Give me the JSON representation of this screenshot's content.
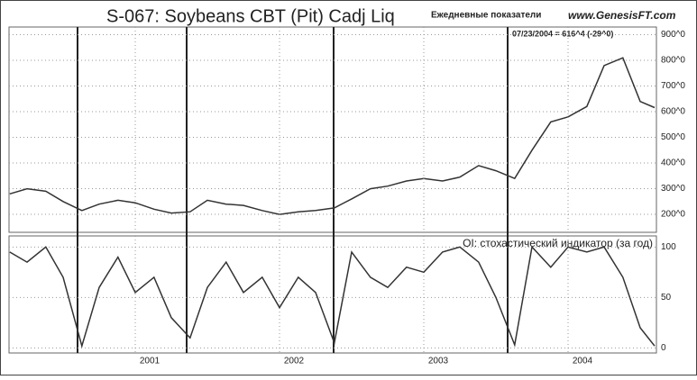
{
  "chart_data": [
    {
      "type": "line",
      "title": "S-067:  Soybeans CBT (Pit) Cadj Liq",
      "subtitle": "Ежедневные показатели",
      "source": "www.GenesisFT.com",
      "annotation": "07/23/2004 = 616^4 (-29^0)",
      "x": [
        2000.13,
        2000.25,
        2000.38,
        2000.5,
        2000.63,
        2000.75,
        2000.88,
        2001.0,
        2001.13,
        2001.25,
        2001.38,
        2001.5,
        2001.63,
        2001.75,
        2001.88,
        2002.0,
        2002.13,
        2002.25,
        2002.38,
        2002.5,
        2002.63,
        2002.75,
        2002.88,
        2003.0,
        2003.13,
        2003.25,
        2003.38,
        2003.5,
        2003.63,
        2003.75,
        2003.88,
        2004.0,
        2004.13,
        2004.25,
        2004.38,
        2004.5,
        2004.6
      ],
      "values": [
        280,
        300,
        290,
        250,
        215,
        240,
        255,
        245,
        220,
        205,
        210,
        255,
        240,
        235,
        215,
        200,
        210,
        215,
        225,
        260,
        300,
        310,
        330,
        340,
        330,
        345,
        390,
        370,
        340,
        450,
        560,
        580,
        620,
        780,
        810,
        640,
        616
      ],
      "color": "#333333",
      "xlim": [
        2000.125,
        2004.6125
      ],
      "ylim": [
        130,
        930
      ],
      "yticks": [
        {
          "value": 200,
          "label": "200^0"
        },
        {
          "value": 300,
          "label": "300^0"
        },
        {
          "value": 400,
          "label": "400^0"
        },
        {
          "value": 500,
          "label": "500^0"
        },
        {
          "value": 600,
          "label": "600^0"
        },
        {
          "value": 700,
          "label": "700^0"
        },
        {
          "value": 800,
          "label": "800^0"
        },
        {
          "value": 900,
          "label": "900^0"
        }
      ],
      "grid": true
    },
    {
      "type": "line",
      "title": "OI: стохастический индикатор (за год)",
      "x": [
        2000.13,
        2000.25,
        2000.38,
        2000.5,
        2000.63,
        2000.75,
        2000.88,
        2001.0,
        2001.13,
        2001.25,
        2001.38,
        2001.5,
        2001.63,
        2001.75,
        2001.88,
        2002.0,
        2002.13,
        2002.25,
        2002.38,
        2002.5,
        2002.63,
        2002.75,
        2002.88,
        2003.0,
        2003.13,
        2003.25,
        2003.38,
        2003.5,
        2003.63,
        2003.75,
        2003.88,
        2004.0,
        2004.13,
        2004.25,
        2004.38,
        2004.5,
        2004.6
      ],
      "values": [
        95,
        85,
        100,
        70,
        2,
        60,
        90,
        55,
        70,
        30,
        10,
        60,
        85,
        55,
        70,
        40,
        70,
        55,
        5,
        95,
        70,
        60,
        80,
        75,
        95,
        100,
        85,
        50,
        3,
        100,
        80,
        100,
        95,
        100,
        70,
        20,
        2
      ],
      "color": "#333333",
      "xlim": [
        2000.125,
        2004.6125
      ],
      "ylim": [
        -5,
        111
      ],
      "yticks": [
        0,
        50,
        100
      ],
      "xticks": [
        2001,
        2002,
        2003,
        2004
      ],
      "grid": true
    }
  ]
}
